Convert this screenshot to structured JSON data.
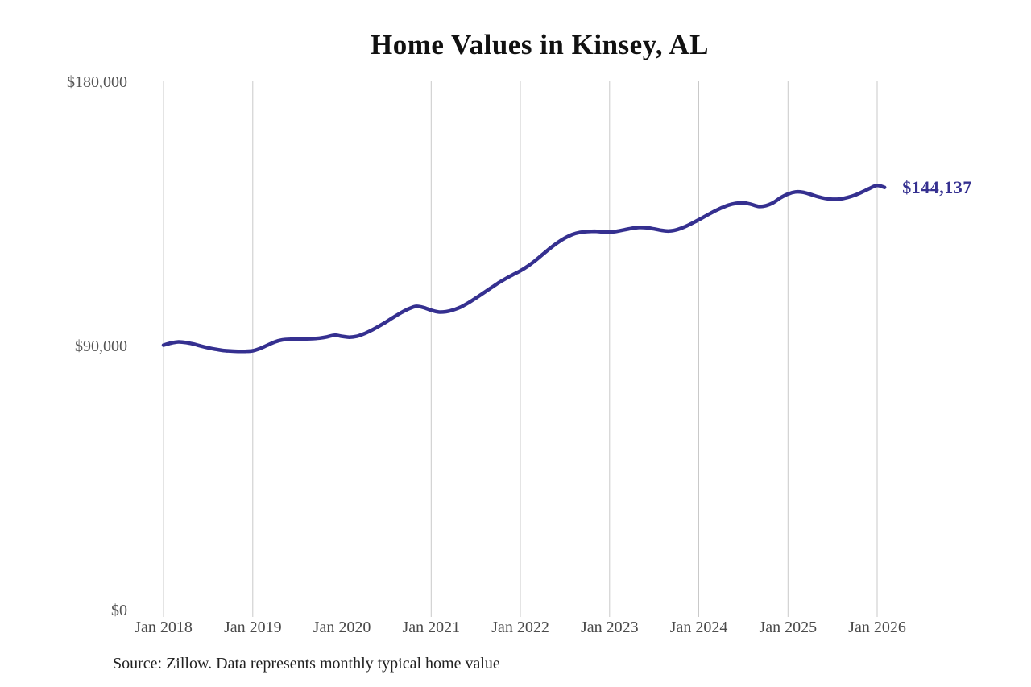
{
  "chart": {
    "title": "Home Values in Kinsey, AL",
    "source": "Source: Zillow. Data represents monthly typical home value"
  },
  "chart_data": {
    "type": "line",
    "title": "Home Values in Kinsey, AL",
    "series_name": "Monthly typical home value",
    "x_start": "2018-01",
    "x_end": "2026-02",
    "x_frequency": "monthly",
    "x_tick_labels": [
      "Jan 2018",
      "Jan 2019",
      "Jan 2020",
      "Jan 2021",
      "Jan 2022",
      "Jan 2023",
      "Jan 2024",
      "Jan 2025",
      "Jan 2026"
    ],
    "y_ticks": [
      {
        "label": "$0",
        "value": 0
      },
      {
        "label": "$90,000",
        "value": 90000
      },
      {
        "label": "$180,000",
        "value": 180000
      }
    ],
    "ylim": [
      0,
      180000
    ],
    "grid": "vertical-only",
    "grid_color": "#c9c9c9",
    "line_color": "#353090",
    "values": [
      90400,
      91100,
      91500,
      91300,
      90800,
      90100,
      89500,
      89000,
      88600,
      88400,
      88300,
      88300,
      88500,
      89300,
      90400,
      91500,
      92200,
      92400,
      92500,
      92500,
      92600,
      92800,
      93200,
      93800,
      93400,
      93100,
      93400,
      94300,
      95500,
      96900,
      98400,
      100000,
      101500,
      102800,
      103600,
      103200,
      102300,
      101700,
      101800,
      102400,
      103400,
      104800,
      106400,
      108100,
      109800,
      111500,
      113000,
      114400,
      115700,
      117300,
      119200,
      121300,
      123400,
      125300,
      126900,
      128100,
      128800,
      129100,
      129200,
      129000,
      128900,
      129200,
      129700,
      130200,
      130500,
      130400,
      130000,
      129500,
      129300,
      129700,
      130600,
      131800,
      133100,
      134500,
      135900,
      137100,
      138100,
      138700,
      138900,
      138400,
      137700,
      137900,
      138900,
      140600,
      141900,
      142600,
      142500,
      141800,
      141000,
      140400,
      140100,
      140200,
      140700,
      141500,
      142600,
      143800,
      144800,
      144137
    ],
    "latest_value": 144137,
    "latest_label": "$144,137",
    "source": "Source: Zillow. Data represents monthly typical home value"
  }
}
